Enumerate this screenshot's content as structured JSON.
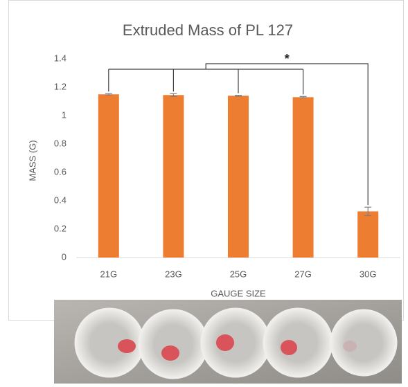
{
  "chart_data": {
    "type": "bar",
    "title": "Extruded Mass of PL 127",
    "x_label": "GAUGE SIZE",
    "y_label": "MASS (G)",
    "categories": [
      "21G",
      "23G",
      "25G",
      "27G",
      "30G"
    ],
    "values": [
      1.15,
      1.145,
      1.14,
      1.13,
      0.325
    ],
    "errors": [
      0.005,
      0.01,
      0.003,
      0.005,
      0.03
    ],
    "color": "#ed7d31",
    "ylim": [
      0,
      1.4
    ],
    "yticks": [
      0,
      0.2,
      0.4,
      0.6,
      0.8,
      1,
      1.2,
      1.4
    ],
    "grid": false,
    "annotation": "*"
  }
}
